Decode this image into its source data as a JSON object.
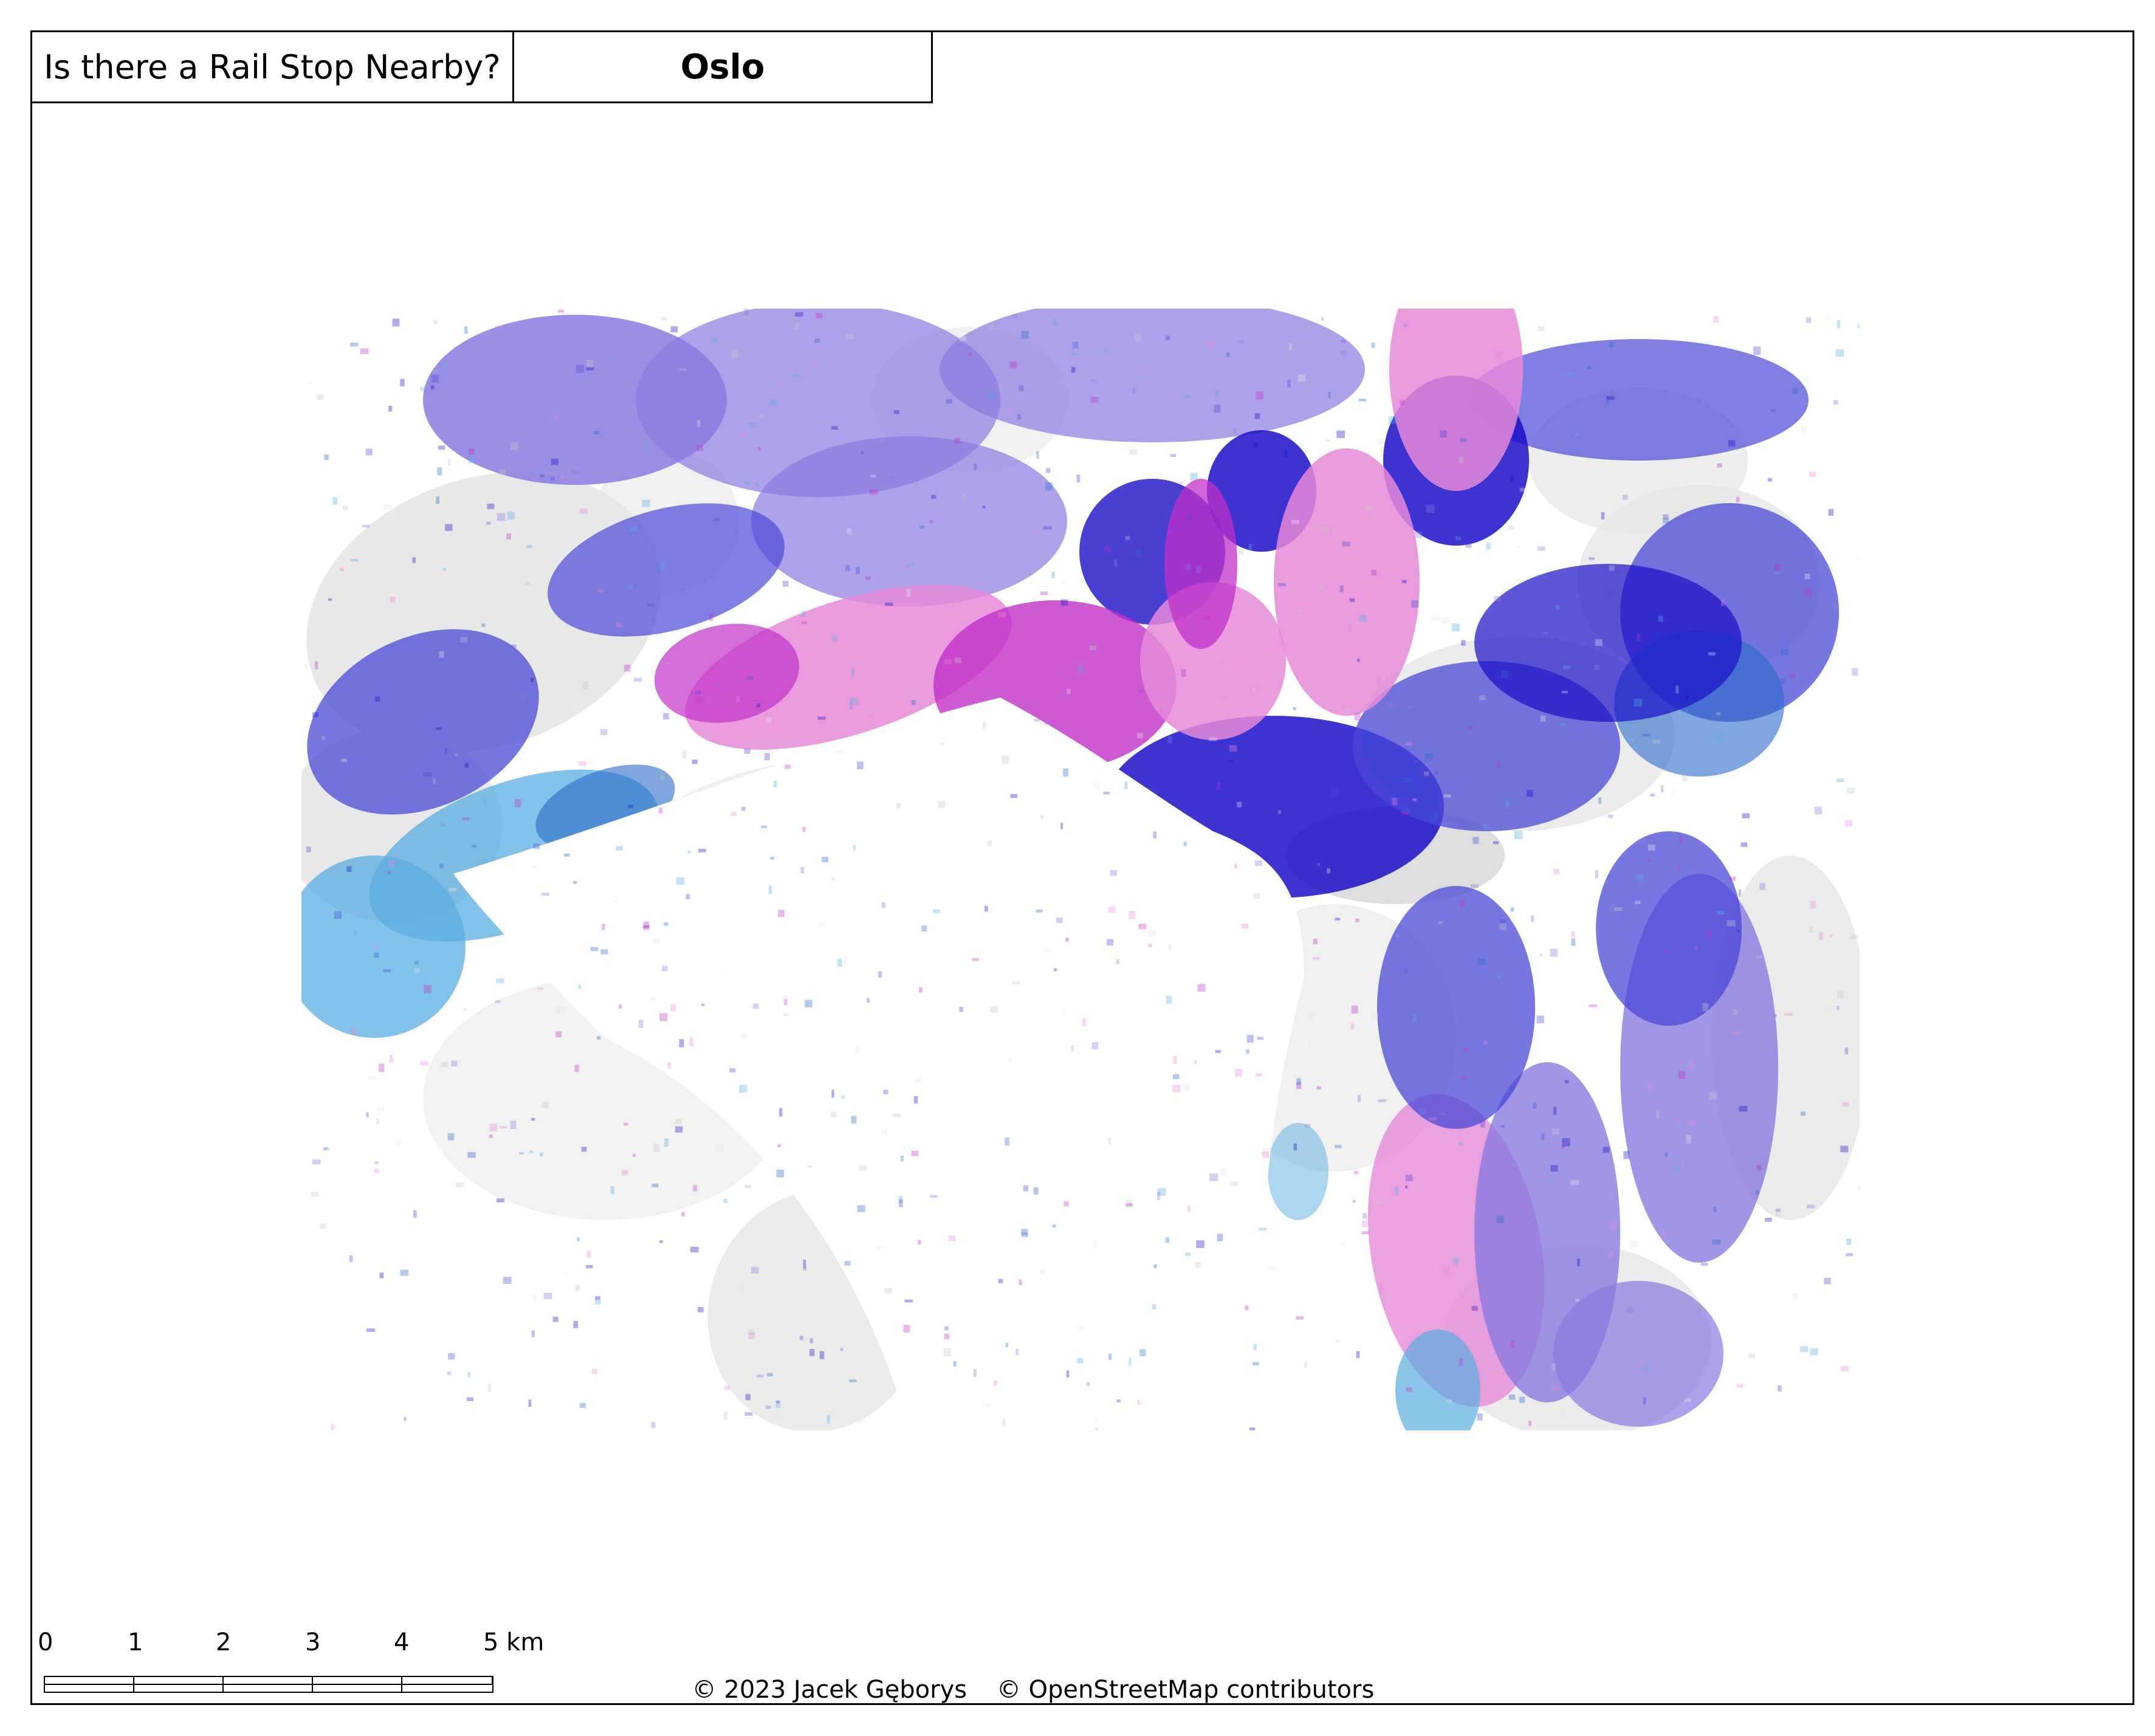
{
  "header": {
    "title": "Is there a Rail Stop Nearby?",
    "city": "Oslo"
  },
  "map": {
    "legend_categories_colors": [
      "#1a0fc8",
      "#4a4ad8",
      "#8a7ae0",
      "#c030c8",
      "#e58ad8",
      "#5aaee0",
      "#2a6ac8",
      "#c8c8c8",
      "#e6e6e6"
    ]
  },
  "scale_bar": {
    "labels": [
      "0",
      "1",
      "2",
      "3",
      "4",
      "5 km"
    ]
  },
  "credits": {
    "author": "© 2023 Jacek Gęborys",
    "osm": "© OpenStreetMap contributors"
  }
}
